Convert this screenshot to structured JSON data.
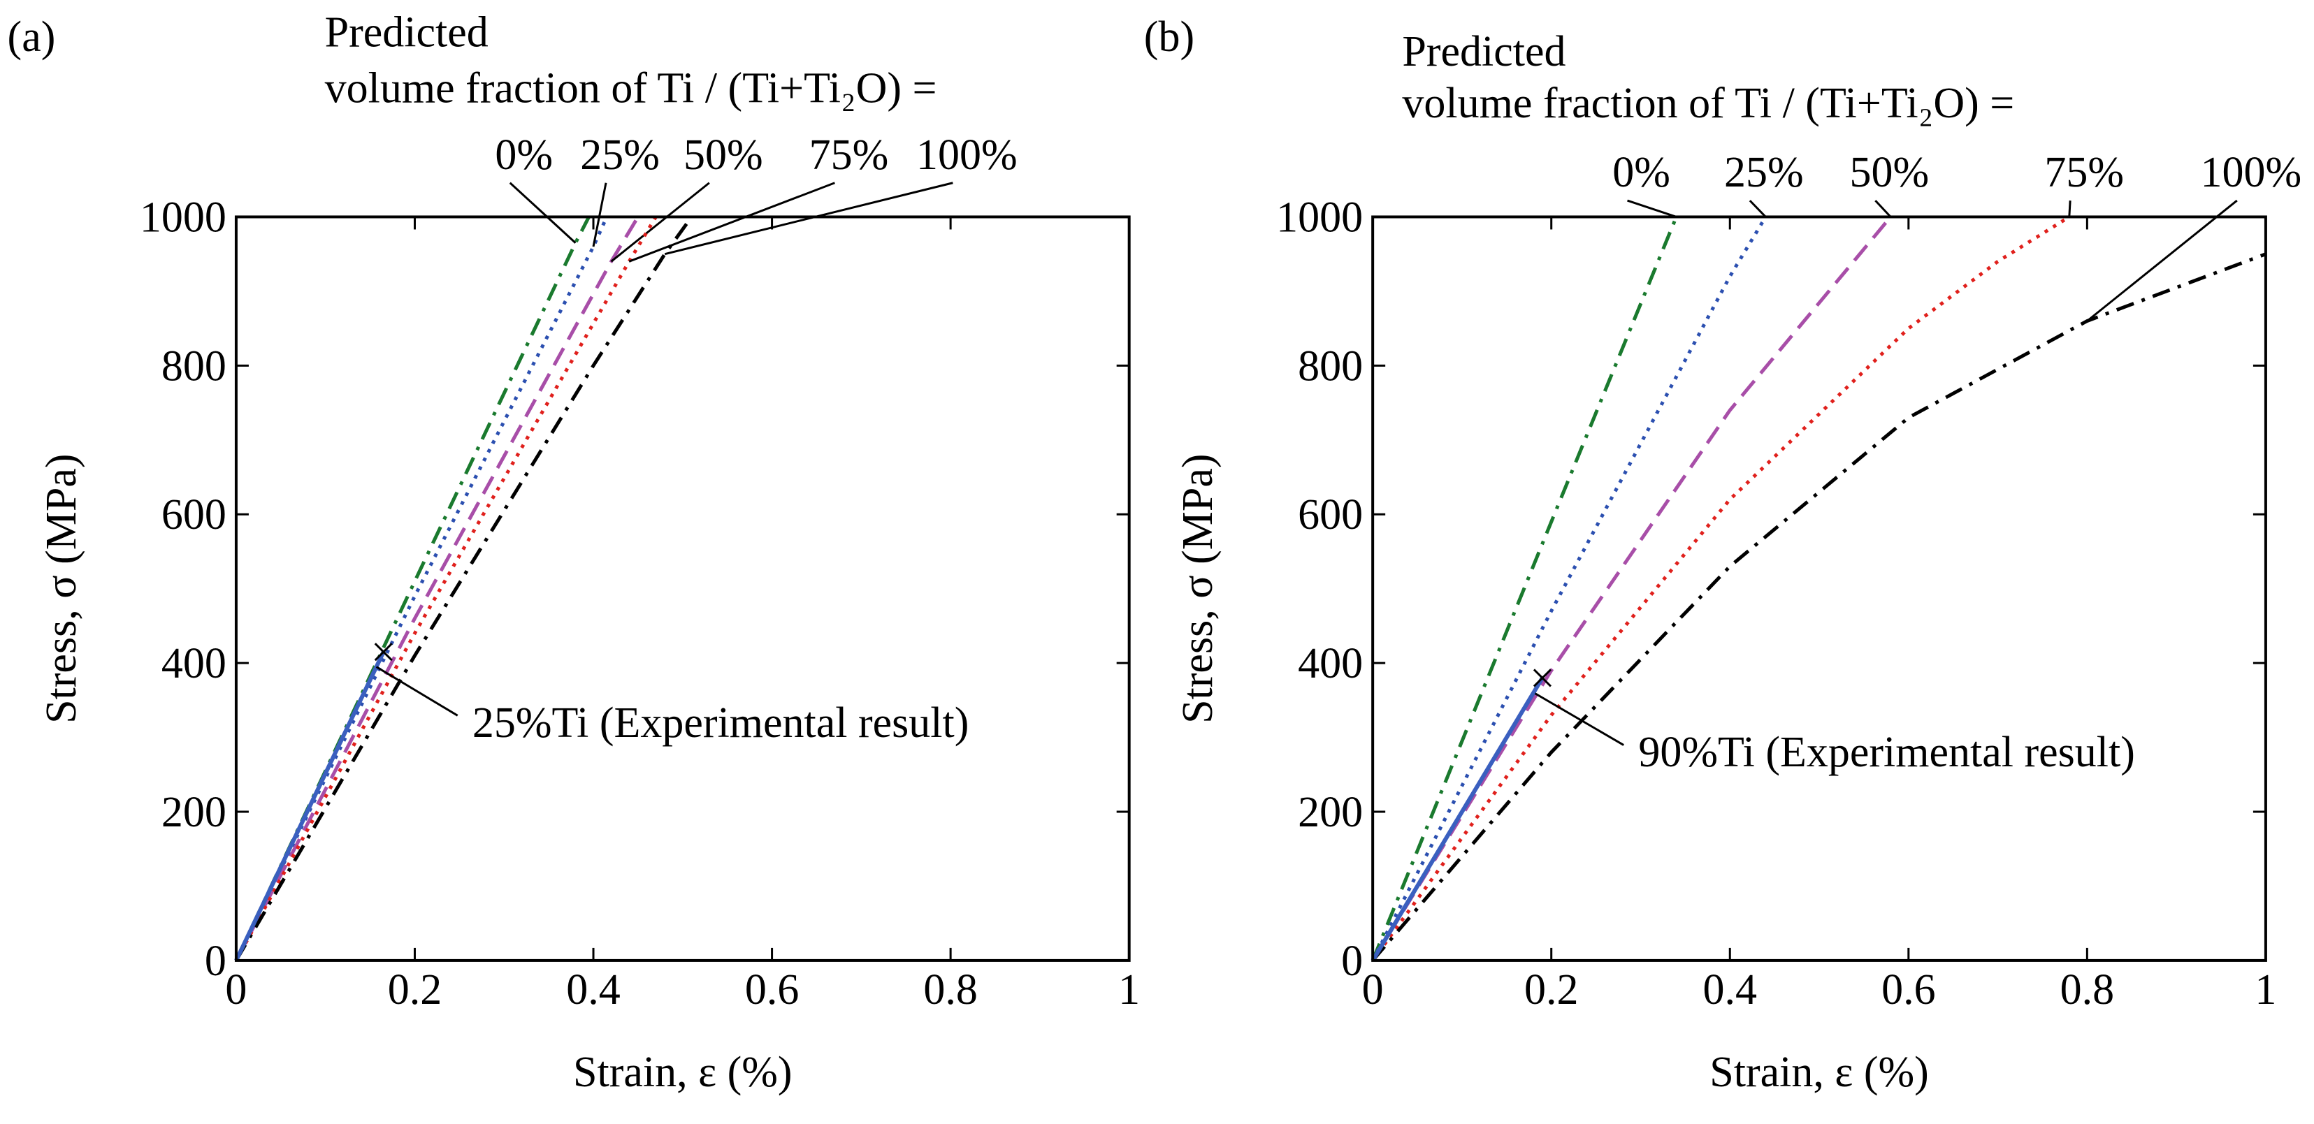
{
  "chart_data": [
    {
      "type": "line",
      "panel_label": "(a)",
      "legend_title": [
        "Predicted",
        "volume fraction of Ti / (Ti+Ti₂O) ="
      ],
      "xlabel": "Strain, ε (%)",
      "ylabel": "Stress, σ (MPa)",
      "xlim": [
        0,
        1
      ],
      "ylim": [
        0,
        1000
      ],
      "xticks": [
        0,
        0.2,
        0.4,
        0.6,
        0.8,
        1
      ],
      "yticks": [
        0,
        200,
        400,
        600,
        800,
        1000
      ],
      "series": [
        {
          "name": "0%",
          "color": "#1a7a2e",
          "style": "dash-dot",
          "x": [
            0,
            0.2,
            0.38,
            0.395
          ],
          "values": [
            0,
            510,
            965,
            1000
          ]
        },
        {
          "name": "25%",
          "color": "#2b4fb0",
          "style": "dotted",
          "x": [
            0,
            0.2,
            0.4,
            0.415
          ],
          "values": [
            0,
            490,
            960,
            1000
          ]
        },
        {
          "name": "50%",
          "color": "#a84ea8",
          "style": "dashed",
          "x": [
            0,
            0.2,
            0.42,
            0.45
          ],
          "values": [
            0,
            460,
            940,
            1000
          ]
        },
        {
          "name": "75%",
          "color": "#e0201c",
          "style": "dotted",
          "x": [
            0,
            0.2,
            0.44,
            0.47
          ],
          "values": [
            0,
            440,
            940,
            1000
          ]
        },
        {
          "name": "100%",
          "color": "#000000",
          "style": "dash-dot",
          "x": [
            0,
            0.2,
            0.4,
            0.48,
            0.51
          ],
          "values": [
            0,
            410,
            800,
            950,
            1000
          ]
        },
        {
          "name": "25%Ti (Experimental result)",
          "color": "#3a5fbf",
          "style": "solid",
          "marker_end": true,
          "x": [
            0,
            0.165
          ],
          "values": [
            0,
            415
          ]
        }
      ]
    },
    {
      "type": "line",
      "panel_label": "(b)",
      "legend_title": [
        "Predicted",
        "volume fraction of Ti / (Ti+Ti₂O) ="
      ],
      "xlabel": "Strain, ε (%)",
      "ylabel": "Stress, σ (MPa)",
      "xlim": [
        0,
        1
      ],
      "ylim": [
        0,
        1000
      ],
      "xticks": [
        0,
        0.2,
        0.4,
        0.6,
        0.8,
        1
      ],
      "yticks": [
        0,
        200,
        400,
        600,
        800,
        1000
      ],
      "series": [
        {
          "name": "0%",
          "color": "#1a7a2e",
          "style": "dash-dot",
          "x": [
            0,
            0.2,
            0.34
          ],
          "values": [
            0,
            590,
            1000
          ]
        },
        {
          "name": "25%",
          "color": "#2b4fb0",
          "style": "dotted",
          "x": [
            0,
            0.2,
            0.4,
            0.44
          ],
          "values": [
            0,
            470,
            920,
            1000
          ]
        },
        {
          "name": "50%",
          "color": "#a84ea8",
          "style": "dashed",
          "x": [
            0,
            0.2,
            0.4,
            0.58
          ],
          "values": [
            0,
            390,
            740,
            1000
          ]
        },
        {
          "name": "75%",
          "color": "#e0201c",
          "style": "dotted",
          "x": [
            0,
            0.2,
            0.4,
            0.6,
            0.7,
            0.78
          ],
          "values": [
            0,
            330,
            620,
            850,
            940,
            1000
          ]
        },
        {
          "name": "100%",
          "color": "#000000",
          "style": "dash-dot",
          "x": [
            0,
            0.2,
            0.4,
            0.6,
            0.8,
            1
          ],
          "values": [
            0,
            280,
            530,
            730,
            860,
            950
          ]
        },
        {
          "name": "90%Ti (Experimental result)",
          "color": "#3a5fbf",
          "style": "solid",
          "marker_end": true,
          "x": [
            0,
            0.19
          ],
          "values": [
            0,
            380
          ]
        }
      ]
    }
  ]
}
